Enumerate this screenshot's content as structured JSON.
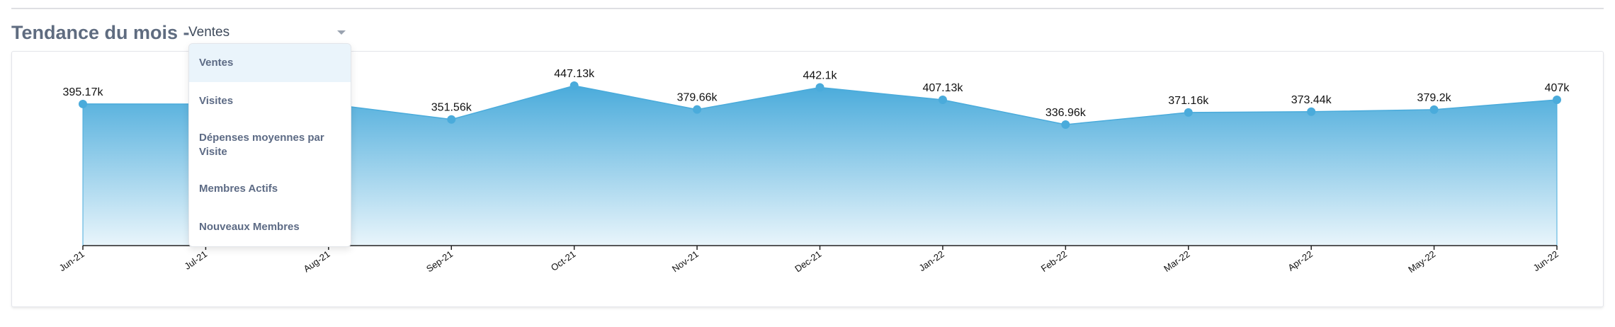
{
  "header": {
    "title": "Tendance du mois -",
    "select_value": "Ventes"
  },
  "dropdown": {
    "options": [
      "Ventes",
      "Visites",
      "Dépenses moyennes par Visite",
      "Membres Actifs",
      "Nouveaux Membres"
    ],
    "selected_index": 0
  },
  "colors": {
    "series": "#4aabdb",
    "fill_top": "#4aabdb",
    "fill_bottom": "#e9f5fb",
    "axis": "#222222"
  },
  "chart_data": {
    "type": "area",
    "title": "",
    "xlabel": "",
    "ylabel": "",
    "categories": [
      "Jun-21",
      "Jul-21",
      "Aug-21",
      "Sep-21",
      "Oct-21",
      "Nov-21",
      "Dec-21",
      "Jan-22",
      "Feb-22",
      "Mar-22",
      "Apr-22",
      "May-22",
      "Jun-22"
    ],
    "values": [
      395.17,
      395.0,
      395.0,
      351.56,
      447.13,
      379.66,
      442.1,
      407.13,
      336.96,
      371.16,
      373.44,
      379.2,
      407.0
    ],
    "labels": [
      "395.17k",
      "",
      "",
      "351.56k",
      "447.13k",
      "379.66k",
      "442.1k",
      "407.13k",
      "336.96k",
      "371.16k",
      "373.44k",
      "379.2k",
      "407k"
    ],
    "unit": "k",
    "ylim": [
      0,
      460
    ],
    "grid": false,
    "legend": "none"
  }
}
